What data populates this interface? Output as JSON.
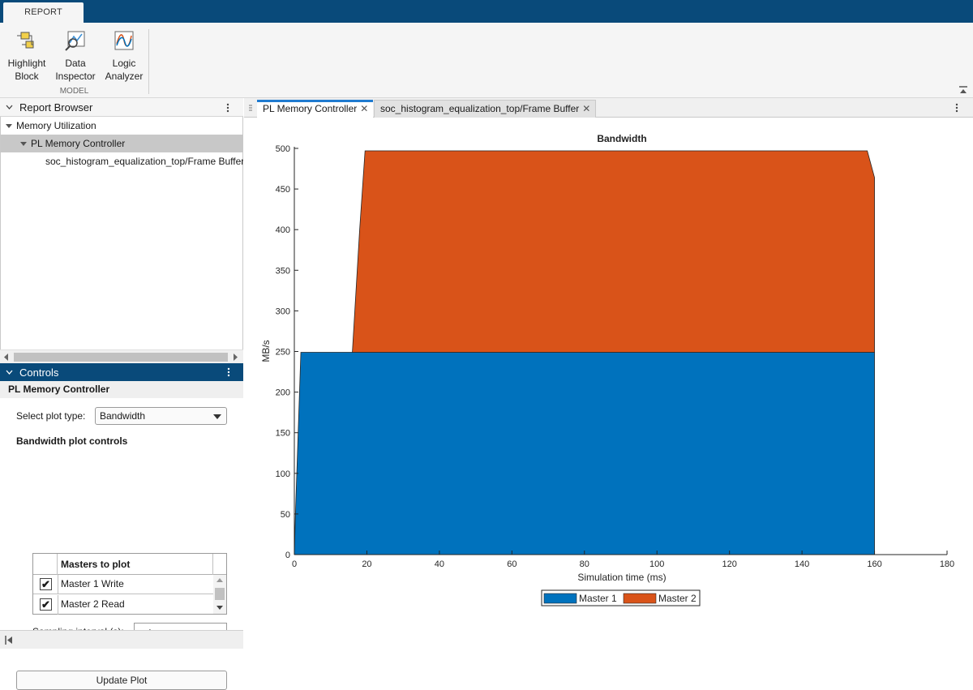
{
  "toolstrip": {
    "tab_label": "REPORT",
    "buttons": [
      {
        "label1": "Highlight",
        "label2": "Block",
        "icon": "highlight-block-icon"
      },
      {
        "label1": "Data",
        "label2": "Inspector",
        "icon": "data-inspector-icon"
      },
      {
        "label1": "Logic",
        "label2": "Analyzer",
        "icon": "logic-analyzer-icon"
      }
    ],
    "section_label": "MODEL"
  },
  "report_browser": {
    "title": "Report Browser",
    "items": [
      {
        "label": "Memory Utilization",
        "expanded": true
      },
      {
        "label": "PL Memory Controller",
        "expanded": true,
        "selected": true
      },
      {
        "label": "soc_histogram_equalization_top/Frame Buffer"
      }
    ]
  },
  "controls": {
    "title": "Controls",
    "subtitle": "PL Memory Controller",
    "plot_type_label": "Select plot type:",
    "plot_type_value": "Bandwidth",
    "section_label": "Bandwidth plot controls",
    "table_header": "Masters to plot",
    "masters": [
      {
        "label": "Master 1 Write",
        "checked": true
      },
      {
        "label": "Master 2 Read",
        "checked": true
      }
    ],
    "check_glyph": "✔",
    "sampling_label": "Sampling interval (s):",
    "sampling_value": "auto",
    "update_button": "Update Plot"
  },
  "doc_tabs": [
    {
      "label": "PL Memory Controller",
      "active": true
    },
    {
      "label": "soc_histogram_equalization_top/Frame Buffer",
      "active": false
    }
  ],
  "colors": {
    "master1": "#0072bd",
    "master2": "#d95319",
    "accent": "#094a7a"
  },
  "chart_data": {
    "type": "area",
    "stacked": true,
    "title": "Bandwidth",
    "xlabel": "Simulation time (ms)",
    "ylabel": "MB/s",
    "xlim": [
      0,
      180
    ],
    "ylim": [
      0,
      500
    ],
    "xticks": [
      0,
      20,
      40,
      60,
      80,
      100,
      120,
      140,
      160,
      180
    ],
    "yticks": [
      0,
      50,
      100,
      150,
      200,
      250,
      300,
      350,
      400,
      450,
      500
    ],
    "series": [
      {
        "name": "Master 1",
        "x": [
          0,
          0.3,
          1.8,
          160,
          160
        ],
        "values": [
          0,
          50,
          249,
          249,
          0
        ]
      },
      {
        "name": "Master 2",
        "x": [
          0,
          16,
          18,
          19.5,
          158,
          160,
          160
        ],
        "values": [
          0,
          0,
          150,
          248,
          248,
          215,
          0
        ]
      }
    ],
    "legend": [
      "Master 1",
      "Master 2"
    ],
    "legend_position": "bottom"
  }
}
